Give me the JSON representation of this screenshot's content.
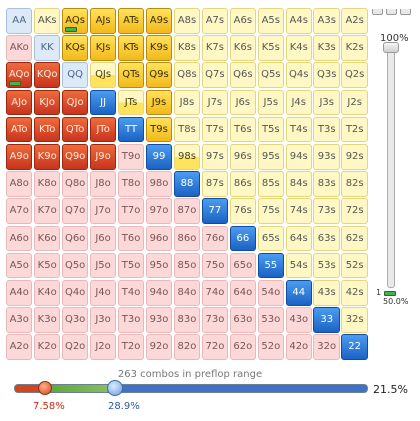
{
  "range_grid": {
    "rows": [
      [
        {
          "hand": "AA",
          "state": "unsel-p"
        },
        {
          "hand": "AKs",
          "state": "unsel-s"
        },
        {
          "hand": "AQs",
          "state": "sel-s",
          "mini": true
        },
        {
          "hand": "AJs",
          "state": "sel-s"
        },
        {
          "hand": "ATs",
          "state": "sel-s"
        },
        {
          "hand": "A9s",
          "state": "sel-s"
        },
        {
          "hand": "A8s",
          "state": "unsel-s"
        },
        {
          "hand": "A7s",
          "state": "unsel-s"
        },
        {
          "hand": "A6s",
          "state": "unsel-s"
        },
        {
          "hand": "A5s",
          "state": "unsel-s"
        },
        {
          "hand": "A4s",
          "state": "unsel-s"
        },
        {
          "hand": "A3s",
          "state": "unsel-s"
        },
        {
          "hand": "A2s",
          "state": "unsel-s"
        }
      ],
      [
        {
          "hand": "AKo",
          "state": "unsel-off"
        },
        {
          "hand": "KK",
          "state": "unsel-p"
        },
        {
          "hand": "KQs",
          "state": "sel-s"
        },
        {
          "hand": "KJs",
          "state": "sel-s"
        },
        {
          "hand": "KTs",
          "state": "sel-s"
        },
        {
          "hand": "K9s",
          "state": "sel-s"
        },
        {
          "hand": "K8s",
          "state": "unsel-s"
        },
        {
          "hand": "K7s",
          "state": "unsel-s"
        },
        {
          "hand": "K6s",
          "state": "unsel-s"
        },
        {
          "hand": "K5s",
          "state": "unsel-s"
        },
        {
          "hand": "K4s",
          "state": "unsel-s"
        },
        {
          "hand": "K3s",
          "state": "unsel-s"
        },
        {
          "hand": "K2s",
          "state": "unsel-s"
        }
      ],
      [
        {
          "hand": "AQo",
          "state": "sel-o",
          "mini": true
        },
        {
          "hand": "KQo",
          "state": "sel-o"
        },
        {
          "hand": "QQ",
          "state": "unsel-p"
        },
        {
          "hand": "QJs",
          "state": "half-s"
        },
        {
          "hand": "QTs",
          "state": "sel-s"
        },
        {
          "hand": "Q9s",
          "state": "sel-s"
        },
        {
          "hand": "Q8s",
          "state": "unsel-s"
        },
        {
          "hand": "Q7s",
          "state": "unsel-s"
        },
        {
          "hand": "Q6s",
          "state": "unsel-s"
        },
        {
          "hand": "Q5s",
          "state": "unsel-s"
        },
        {
          "hand": "Q4s",
          "state": "unsel-s"
        },
        {
          "hand": "Q3s",
          "state": "unsel-s"
        },
        {
          "hand": "Q2s",
          "state": "unsel-s"
        }
      ],
      [
        {
          "hand": "AJo",
          "state": "sel-o"
        },
        {
          "hand": "KJo",
          "state": "sel-o"
        },
        {
          "hand": "QJo",
          "state": "sel-o"
        },
        {
          "hand": "JJ",
          "state": "sel-p"
        },
        {
          "hand": "JTs",
          "state": "half-s"
        },
        {
          "hand": "J9s",
          "state": "sel-s"
        },
        {
          "hand": "J8s",
          "state": "unsel-s"
        },
        {
          "hand": "J7s",
          "state": "unsel-s"
        },
        {
          "hand": "J6s",
          "state": "unsel-s"
        },
        {
          "hand": "J5s",
          "state": "unsel-s"
        },
        {
          "hand": "J4s",
          "state": "unsel-s"
        },
        {
          "hand": "J3s",
          "state": "unsel-s"
        },
        {
          "hand": "J2s",
          "state": "unsel-s"
        }
      ],
      [
        {
          "hand": "ATo",
          "state": "sel-o"
        },
        {
          "hand": "KTo",
          "state": "sel-o"
        },
        {
          "hand": "QTo",
          "state": "sel-o"
        },
        {
          "hand": "JTo",
          "state": "sel-o"
        },
        {
          "hand": "TT",
          "state": "sel-p"
        },
        {
          "hand": "T9s",
          "state": "sel-s"
        },
        {
          "hand": "T8s",
          "state": "unsel-s"
        },
        {
          "hand": "T7s",
          "state": "unsel-s"
        },
        {
          "hand": "T6s",
          "state": "unsel-s"
        },
        {
          "hand": "T5s",
          "state": "unsel-s"
        },
        {
          "hand": "T4s",
          "state": "unsel-s"
        },
        {
          "hand": "T3s",
          "state": "unsel-s"
        },
        {
          "hand": "T2s",
          "state": "unsel-s"
        }
      ],
      [
        {
          "hand": "A9o",
          "state": "sel-o"
        },
        {
          "hand": "K9o",
          "state": "sel-o"
        },
        {
          "hand": "Q9o",
          "state": "sel-o"
        },
        {
          "hand": "J9o",
          "state": "sel-o"
        },
        {
          "hand": "T9o",
          "state": "unsel-off"
        },
        {
          "hand": "99",
          "state": "sel-p"
        },
        {
          "hand": "98s",
          "state": "half-s"
        },
        {
          "hand": "97s",
          "state": "unsel-s"
        },
        {
          "hand": "96s",
          "state": "unsel-s"
        },
        {
          "hand": "95s",
          "state": "unsel-s"
        },
        {
          "hand": "94s",
          "state": "unsel-s"
        },
        {
          "hand": "93s",
          "state": "unsel-s"
        },
        {
          "hand": "92s",
          "state": "unsel-s"
        }
      ],
      [
        {
          "hand": "A8o",
          "state": "unsel-off"
        },
        {
          "hand": "K8o",
          "state": "unsel-off"
        },
        {
          "hand": "Q8o",
          "state": "unsel-off"
        },
        {
          "hand": "J8o",
          "state": "unsel-off"
        },
        {
          "hand": "T8o",
          "state": "unsel-off"
        },
        {
          "hand": "98o",
          "state": "unsel-off"
        },
        {
          "hand": "88",
          "state": "sel-p"
        },
        {
          "hand": "87s",
          "state": "unsel-s"
        },
        {
          "hand": "86s",
          "state": "unsel-s"
        },
        {
          "hand": "85s",
          "state": "unsel-s"
        },
        {
          "hand": "84s",
          "state": "unsel-s"
        },
        {
          "hand": "83s",
          "state": "unsel-s"
        },
        {
          "hand": "82s",
          "state": "unsel-s"
        }
      ],
      [
        {
          "hand": "A7o",
          "state": "unsel-off"
        },
        {
          "hand": "K7o",
          "state": "unsel-off"
        },
        {
          "hand": "Q7o",
          "state": "unsel-off"
        },
        {
          "hand": "J7o",
          "state": "unsel-off"
        },
        {
          "hand": "T7o",
          "state": "unsel-off"
        },
        {
          "hand": "97o",
          "state": "unsel-off"
        },
        {
          "hand": "87o",
          "state": "unsel-off"
        },
        {
          "hand": "77",
          "state": "sel-p"
        },
        {
          "hand": "76s",
          "state": "unsel-s"
        },
        {
          "hand": "75s",
          "state": "unsel-s"
        },
        {
          "hand": "74s",
          "state": "unsel-s"
        },
        {
          "hand": "73s",
          "state": "unsel-s"
        },
        {
          "hand": "72s",
          "state": "unsel-s"
        }
      ],
      [
        {
          "hand": "A6o",
          "state": "unsel-off"
        },
        {
          "hand": "K6o",
          "state": "unsel-off"
        },
        {
          "hand": "Q6o",
          "state": "unsel-off"
        },
        {
          "hand": "J6o",
          "state": "unsel-off"
        },
        {
          "hand": "T6o",
          "state": "unsel-off"
        },
        {
          "hand": "96o",
          "state": "unsel-off"
        },
        {
          "hand": "86o",
          "state": "unsel-off"
        },
        {
          "hand": "76o",
          "state": "unsel-off"
        },
        {
          "hand": "66",
          "state": "sel-p"
        },
        {
          "hand": "65s",
          "state": "unsel-s"
        },
        {
          "hand": "64s",
          "state": "unsel-s"
        },
        {
          "hand": "63s",
          "state": "unsel-s"
        },
        {
          "hand": "62s",
          "state": "unsel-s"
        }
      ],
      [
        {
          "hand": "A5o",
          "state": "unsel-off"
        },
        {
          "hand": "K5o",
          "state": "unsel-off"
        },
        {
          "hand": "Q5o",
          "state": "unsel-off"
        },
        {
          "hand": "J5o",
          "state": "unsel-off"
        },
        {
          "hand": "T5o",
          "state": "unsel-off"
        },
        {
          "hand": "95o",
          "state": "unsel-off"
        },
        {
          "hand": "85o",
          "state": "unsel-off"
        },
        {
          "hand": "75o",
          "state": "unsel-off"
        },
        {
          "hand": "65o",
          "state": "unsel-off"
        },
        {
          "hand": "55",
          "state": "sel-p"
        },
        {
          "hand": "54s",
          "state": "unsel-s"
        },
        {
          "hand": "53s",
          "state": "unsel-s"
        },
        {
          "hand": "52s",
          "state": "unsel-s"
        }
      ],
      [
        {
          "hand": "A4o",
          "state": "unsel-off"
        },
        {
          "hand": "K4o",
          "state": "unsel-off"
        },
        {
          "hand": "Q4o",
          "state": "unsel-off"
        },
        {
          "hand": "J4o",
          "state": "unsel-off"
        },
        {
          "hand": "T4o",
          "state": "unsel-off"
        },
        {
          "hand": "94o",
          "state": "unsel-off"
        },
        {
          "hand": "84o",
          "state": "unsel-off"
        },
        {
          "hand": "74o",
          "state": "unsel-off"
        },
        {
          "hand": "64o",
          "state": "unsel-off"
        },
        {
          "hand": "54o",
          "state": "unsel-off"
        },
        {
          "hand": "44",
          "state": "sel-p"
        },
        {
          "hand": "43s",
          "state": "unsel-s"
        },
        {
          "hand": "42s",
          "state": "unsel-s"
        }
      ],
      [
        {
          "hand": "A3o",
          "state": "unsel-off"
        },
        {
          "hand": "K3o",
          "state": "unsel-off"
        },
        {
          "hand": "Q3o",
          "state": "unsel-off"
        },
        {
          "hand": "J3o",
          "state": "unsel-off"
        },
        {
          "hand": "T3o",
          "state": "unsel-off"
        },
        {
          "hand": "93o",
          "state": "unsel-off"
        },
        {
          "hand": "83o",
          "state": "unsel-off"
        },
        {
          "hand": "73o",
          "state": "unsel-off"
        },
        {
          "hand": "63o",
          "state": "unsel-off"
        },
        {
          "hand": "53o",
          "state": "unsel-off"
        },
        {
          "hand": "43o",
          "state": "unsel-off"
        },
        {
          "hand": "33",
          "state": "sel-p"
        },
        {
          "hand": "32s",
          "state": "unsel-s"
        }
      ],
      [
        {
          "hand": "A2o",
          "state": "unsel-off"
        },
        {
          "hand": "K2o",
          "state": "unsel-off"
        },
        {
          "hand": "Q2o",
          "state": "unsel-off"
        },
        {
          "hand": "J2o",
          "state": "unsel-off"
        },
        {
          "hand": "T2o",
          "state": "unsel-off"
        },
        {
          "hand": "92o",
          "state": "unsel-off"
        },
        {
          "hand": "82o",
          "state": "unsel-off"
        },
        {
          "hand": "72o",
          "state": "unsel-off"
        },
        {
          "hand": "62o",
          "state": "unsel-off"
        },
        {
          "hand": "52o",
          "state": "unsel-off"
        },
        {
          "hand": "42o",
          "state": "unsel-off"
        },
        {
          "hand": "32o",
          "state": "unsel-off"
        },
        {
          "hand": "22",
          "state": "sel-p"
        }
      ]
    ]
  },
  "vertical_slider": {
    "top_label": "100%",
    "bottom_label": "1",
    "half_label": "50.0%",
    "value_fraction": 1.0
  },
  "footer": {
    "combos_text": "263 combos in preflop range",
    "total_pct": "21.5%",
    "red_handle_pct": "7.58%",
    "blue_handle_pct": "28.9%"
  },
  "colors": {
    "selected_offsuit": "#d9481f",
    "selected_suited": "#f5c52a",
    "selected_pair": "#2c7bd8",
    "unselected_offsuit": "#fcd8d8",
    "unselected_suited": "#fff8c4",
    "unselected_pair": "#dce9f7"
  }
}
